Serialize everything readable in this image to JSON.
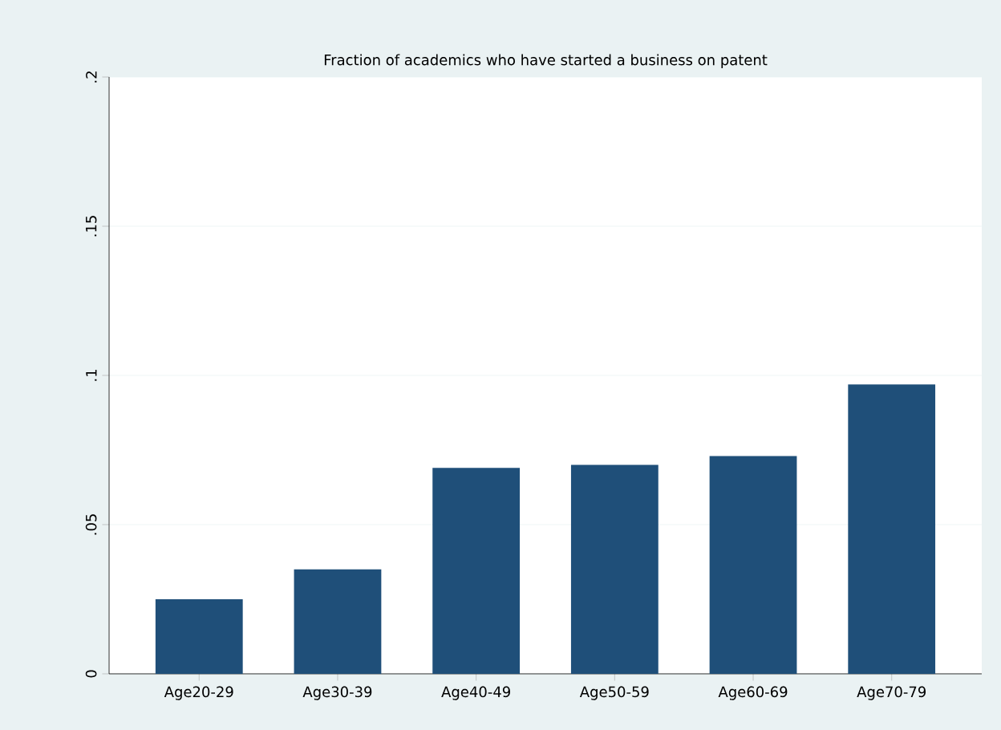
{
  "chart_data": {
    "type": "bar",
    "title": "Fraction of academics who have started a business on patent",
    "categories": [
      "Age20-29",
      "Age30-39",
      "Age40-49",
      "Age50-59",
      "Age60-69",
      "Age70-79"
    ],
    "values": [
      0.025,
      0.035,
      0.069,
      0.07,
      0.073,
      0.097
    ],
    "color": "#1f4f79",
    "ylim": [
      0,
      0.2
    ],
    "yticks": [
      {
        "value": 0,
        "label": "0"
      },
      {
        "value": 0.05,
        "label": ".05"
      },
      {
        "value": 0.1,
        "label": ".1"
      },
      {
        "value": 0.15,
        "label": ".15"
      },
      {
        "value": 0.2,
        "label": ".2"
      }
    ],
    "grid": "y"
  }
}
